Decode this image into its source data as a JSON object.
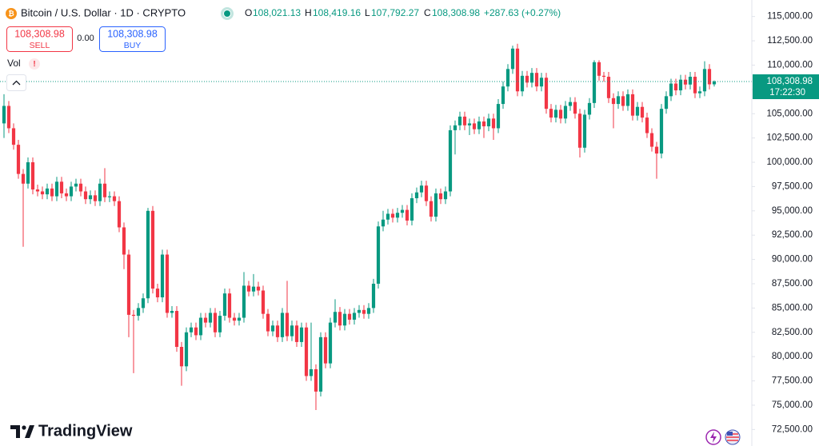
{
  "header": {
    "title": "Bitcoin / U.S. Dollar · 1D · CRYPTO",
    "open_label": "O",
    "open": "108,021.13",
    "high_label": "H",
    "high": "108,419.16",
    "low_label": "L",
    "low": "107,792.27",
    "close_label": "C",
    "close": "108,308.98",
    "change": "+287.63 (+0.27%)"
  },
  "trade": {
    "sell_price": "108,308.98",
    "sell_label": "SELL",
    "spread": "0.00",
    "buy_price": "108,308.98",
    "buy_label": "BUY"
  },
  "volume_label": "Vol",
  "brand": "TradingView",
  "chart_data": {
    "type": "candlestick",
    "up_color": "#089981",
    "down_color": "#f23645",
    "grid": false,
    "ylim": [
      70800,
      116700
    ],
    "yticks": [
      {
        "value": 115000,
        "label": "115,000.00"
      },
      {
        "value": 112500,
        "label": "112,500.00"
      },
      {
        "value": 110000,
        "label": "110,000.00"
      },
      {
        "value": 107500,
        "label": "107,500.00"
      },
      {
        "value": 105000,
        "label": "105,000.00"
      },
      {
        "value": 102500,
        "label": "102,500.00"
      },
      {
        "value": 100000,
        "label": "100,000.00"
      },
      {
        "value": 97500,
        "label": "97,500.00"
      },
      {
        "value": 95000,
        "label": "95,000.00"
      },
      {
        "value": 92500,
        "label": "92,500.00"
      },
      {
        "value": 90000,
        "label": "90,000.00"
      },
      {
        "value": 87500,
        "label": "87,500.00"
      },
      {
        "value": 85000,
        "label": "85,000.00"
      },
      {
        "value": 82500,
        "label": "82,500.00"
      },
      {
        "value": 80000,
        "label": "80,000.00"
      },
      {
        "value": 77500,
        "label": "77,500.00"
      },
      {
        "value": 75000,
        "label": "75,000.00"
      },
      {
        "value": 72500,
        "label": "72,500.00"
      }
    ],
    "last_price": {
      "value": 108308.98,
      "label": "108,308.98"
    },
    "countdown": "17:22:30",
    "candles": [
      [
        104000,
        107000,
        102500,
        105800
      ],
      [
        105800,
        106300,
        103000,
        103500
      ],
      [
        103500,
        104000,
        101300,
        101800
      ],
      [
        101800,
        102300,
        98300,
        98800
      ],
      [
        98800,
        99300,
        91300,
        97800
      ],
      [
        97800,
        100500,
        97300,
        100000
      ],
      [
        100000,
        100500,
        96700,
        97200
      ],
      [
        97200,
        97700,
        96500,
        97000
      ],
      [
        97000,
        97500,
        96200,
        96700
      ],
      [
        96700,
        97800,
        96200,
        97300
      ],
      [
        97300,
        97800,
        96000,
        96500
      ],
      [
        96500,
        98500,
        96000,
        98000
      ],
      [
        98000,
        98500,
        96300,
        96800
      ],
      [
        96800,
        97300,
        96000,
        96500
      ],
      [
        96500,
        98000,
        96000,
        97500
      ],
      [
        97500,
        98300,
        97000,
        97800
      ],
      [
        97800,
        98300,
        96500,
        97000
      ],
      [
        97000,
        97500,
        95700,
        96200
      ],
      [
        96200,
        97100,
        95700,
        96600
      ],
      [
        96600,
        97100,
        95500,
        96000
      ],
      [
        96000,
        98300,
        95500,
        97800
      ],
      [
        97800,
        99400,
        95900,
        96400
      ],
      [
        96400,
        97000,
        95900,
        96500
      ],
      [
        96500,
        97000,
        95500,
        96000
      ],
      [
        96000,
        96500,
        92800,
        93300
      ],
      [
        93300,
        93800,
        89000,
        90500
      ],
      [
        90500,
        91000,
        82000,
        84300
      ],
      [
        84300,
        84800,
        78300,
        84200
      ],
      [
        84200,
        85500,
        83700,
        85000
      ],
      [
        85000,
        86500,
        84500,
        86000
      ],
      [
        86000,
        95300,
        85500,
        95000
      ],
      [
        95000,
        95500,
        86500,
        87000
      ],
      [
        87000,
        87500,
        85600,
        86100
      ],
      [
        86100,
        91000,
        85600,
        90500
      ],
      [
        90500,
        91000,
        84000,
        84500
      ],
      [
        84500,
        85200,
        84000,
        84700
      ],
      [
        84700,
        85200,
        80500,
        81000
      ],
      [
        81000,
        81500,
        77000,
        79000
      ],
      [
        79000,
        83000,
        78500,
        82500
      ],
      [
        82500,
        83500,
        82000,
        83000
      ],
      [
        83000,
        83500,
        81700,
        82200
      ],
      [
        82200,
        84500,
        81700,
        84000
      ],
      [
        84000,
        84500,
        83000,
        83500
      ],
      [
        83500,
        85000,
        83000,
        84500
      ],
      [
        84500,
        85000,
        82000,
        82500
      ],
      [
        82500,
        84700,
        82000,
        84200
      ],
      [
        84200,
        87000,
        83700,
        86500
      ],
      [
        86500,
        87000,
        83500,
        84000
      ],
      [
        84000,
        84500,
        83200,
        83700
      ],
      [
        83700,
        84500,
        83200,
        84000
      ],
      [
        84000,
        88700,
        83500,
        87300
      ],
      [
        87300,
        87800,
        86200,
        86700
      ],
      [
        86700,
        88500,
        86200,
        87200
      ],
      [
        87200,
        87700,
        86300,
        86800
      ],
      [
        86800,
        87300,
        83900,
        84400
      ],
      [
        84400,
        84900,
        82100,
        82600
      ],
      [
        82600,
        83700,
        82100,
        83200
      ],
      [
        83200,
        83700,
        81500,
        82000
      ],
      [
        82000,
        85000,
        81500,
        84500
      ],
      [
        84500,
        87800,
        81600,
        82100
      ],
      [
        82100,
        83700,
        81600,
        83200
      ],
      [
        83200,
        83700,
        81000,
        81500
      ],
      [
        81500,
        83500,
        81000,
        83000
      ],
      [
        83000,
        83500,
        77500,
        78000
      ],
      [
        78000,
        83500,
        77500,
        78700
      ],
      [
        78700,
        79200,
        74500,
        76400
      ],
      [
        76400,
        82500,
        75900,
        82000
      ],
      [
        82000,
        82500,
        78800,
        79300
      ],
      [
        79300,
        84000,
        78800,
        83500
      ],
      [
        83500,
        85900,
        83000,
        84600
      ],
      [
        84600,
        85100,
        82700,
        83200
      ],
      [
        83200,
        84900,
        82700,
        84400
      ],
      [
        84400,
        84900,
        83300,
        83800
      ],
      [
        83800,
        85000,
        83300,
        84500
      ],
      [
        84500,
        85300,
        84000,
        84800
      ],
      [
        84800,
        85300,
        83900,
        84400
      ],
      [
        84400,
        85500,
        83900,
        85000
      ],
      [
        85000,
        88000,
        84500,
        87500
      ],
      [
        87500,
        93900,
        87000,
        93400
      ],
      [
        93400,
        95000,
        92900,
        94100
      ],
      [
        94100,
        95200,
        93600,
        94700
      ],
      [
        94700,
        95200,
        93800,
        94300
      ],
      [
        94300,
        95300,
        93800,
        94800
      ],
      [
        94800,
        95600,
        94300,
        95100
      ],
      [
        95100,
        95600,
        93500,
        94000
      ],
      [
        94000,
        96800,
        93500,
        96300
      ],
      [
        96300,
        97400,
        95800,
        96900
      ],
      [
        96900,
        98100,
        96400,
        97600
      ],
      [
        97600,
        98100,
        95500,
        96000
      ],
      [
        96000,
        96500,
        93900,
        94400
      ],
      [
        94400,
        97300,
        93900,
        96800
      ],
      [
        96800,
        97300,
        95700,
        96200
      ],
      [
        96200,
        97500,
        95700,
        97000
      ],
      [
        97000,
        103800,
        96500,
        103300
      ],
      [
        103300,
        104300,
        100800,
        103800
      ],
      [
        103800,
        105200,
        103300,
        104700
      ],
      [
        104700,
        105200,
        103300,
        103800
      ],
      [
        103800,
        104500,
        102800,
        104000
      ],
      [
        104000,
        104500,
        102900,
        103400
      ],
      [
        103400,
        104700,
        102900,
        104200
      ],
      [
        104200,
        104700,
        102500,
        103700
      ],
      [
        103700,
        105000,
        103200,
        104500
      ],
      [
        104500,
        105000,
        102300,
        103500
      ],
      [
        103500,
        106500,
        103000,
        106000
      ],
      [
        106000,
        108300,
        105500,
        107800
      ],
      [
        107800,
        110100,
        107300,
        109600
      ],
      [
        109600,
        112000,
        109100,
        111700
      ],
      [
        111700,
        112200,
        106800,
        107300
      ],
      [
        107300,
        109400,
        106800,
        108900
      ],
      [
        108900,
        109400,
        107700,
        108200
      ],
      [
        108200,
        109700,
        107700,
        109200
      ],
      [
        109200,
        109700,
        107300,
        107800
      ],
      [
        107800,
        109200,
        107300,
        108700
      ],
      [
        108700,
        109200,
        105000,
        105500
      ],
      [
        105500,
        106000,
        104100,
        104600
      ],
      [
        104600,
        105900,
        104100,
        105400
      ],
      [
        105400,
        105900,
        104000,
        104500
      ],
      [
        104500,
        106300,
        104000,
        105800
      ],
      [
        105800,
        106700,
        105300,
        106200
      ],
      [
        106200,
        106700,
        104500,
        105000
      ],
      [
        105000,
        105500,
        100500,
        101500
      ],
      [
        101500,
        105400,
        101000,
        104900
      ],
      [
        104900,
        106600,
        104400,
        106100
      ],
      [
        106100,
        110500,
        105600,
        110300
      ],
      [
        110300,
        110500,
        108400,
        108900
      ],
      [
        108900,
        109300,
        108300,
        108800
      ],
      [
        108800,
        109300,
        106100,
        106600
      ],
      [
        106600,
        107100,
        103500,
        106000
      ],
      [
        106000,
        107300,
        105500,
        106800
      ],
      [
        106800,
        107300,
        105300,
        105800
      ],
      [
        105800,
        107500,
        105300,
        107000
      ],
      [
        107000,
        107500,
        104300,
        104800
      ],
      [
        104800,
        106200,
        104300,
        105700
      ],
      [
        105700,
        106200,
        104100,
        104600
      ],
      [
        104600,
        105100,
        102500,
        103000
      ],
      [
        103000,
        103500,
        101100,
        101600
      ],
      [
        101600,
        102100,
        98300,
        100900
      ],
      [
        100900,
        106000,
        100400,
        105500
      ],
      [
        105500,
        107300,
        105000,
        106800
      ],
      [
        106800,
        108600,
        106300,
        108100
      ],
      [
        108100,
        108600,
        106900,
        107400
      ],
      [
        107400,
        109000,
        106900,
        108500
      ],
      [
        108500,
        109000,
        107500,
        108000
      ],
      [
        108000,
        109300,
        107500,
        108800
      ],
      [
        108800,
        109300,
        106600,
        107100
      ],
      [
        107100,
        107800,
        106600,
        107300
      ],
      [
        107300,
        110400,
        106800,
        109600
      ],
      [
        109600,
        110100,
        107500,
        108021.13
      ],
      [
        108021.13,
        108419.16,
        107792.27,
        108308.98
      ]
    ]
  }
}
